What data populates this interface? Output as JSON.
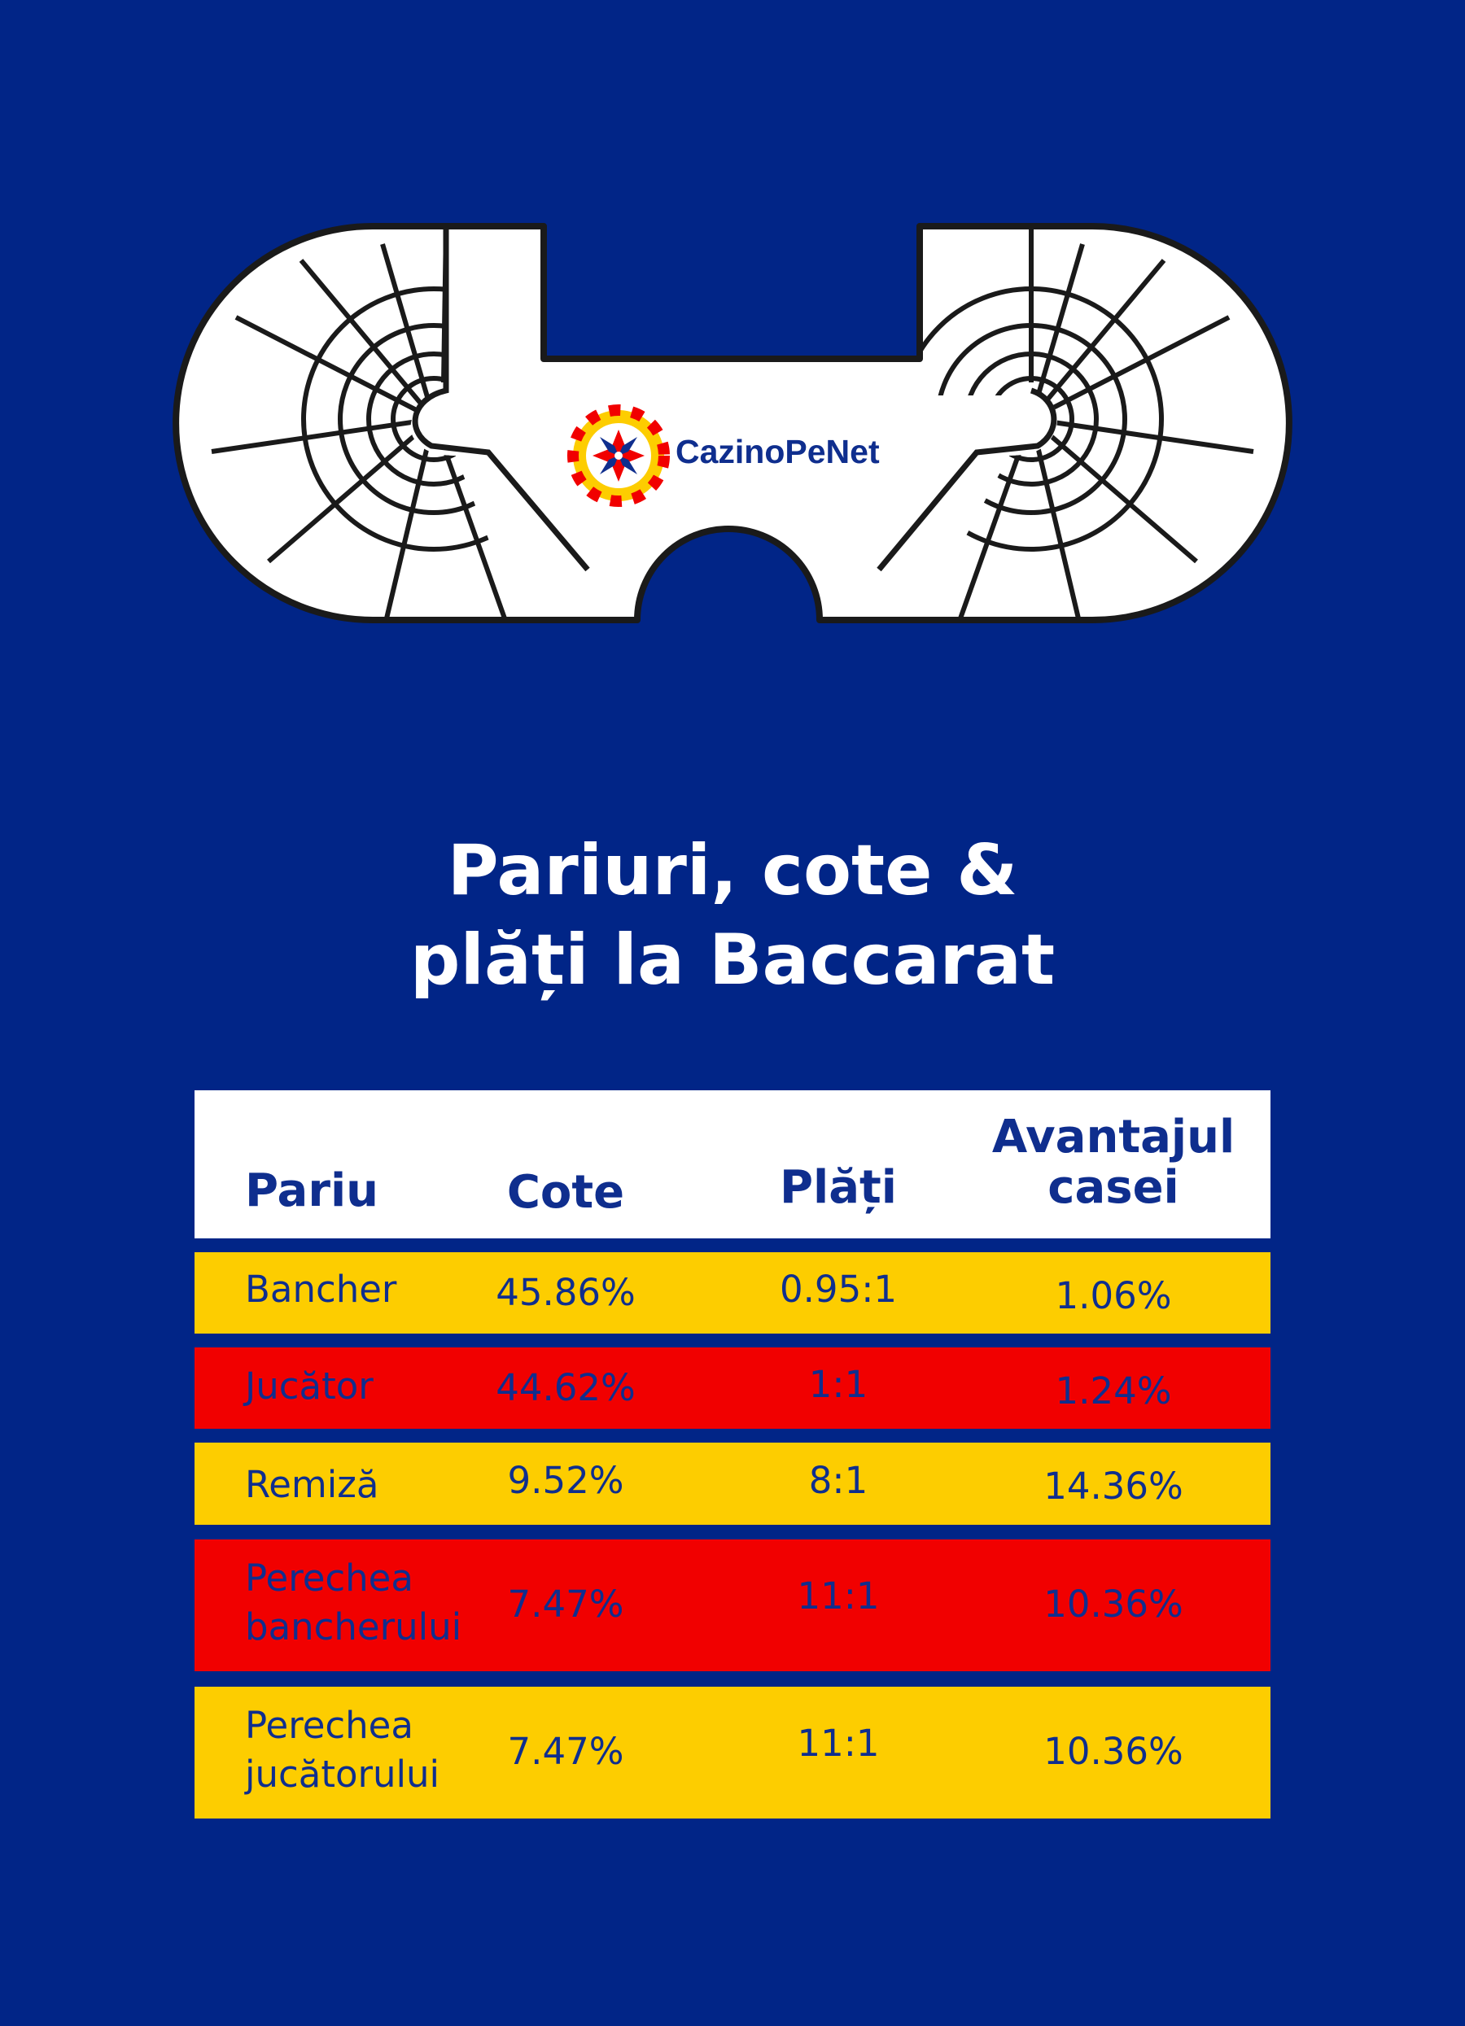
{
  "logo": {
    "brand_name": "CazinoPeNet"
  },
  "title": {
    "line1": "Pariuri, cote &",
    "line2": "plăți la Baccarat"
  },
  "table": {
    "headers": {
      "bet": "Pariu",
      "odds": "Cote",
      "payout": "Plăți",
      "house_edge_line1": "Avantajul",
      "house_edge_line2": "casei"
    },
    "rows": [
      {
        "bet_line1": "Bancher",
        "bet_line2": "",
        "odds": "45.86%",
        "payout": "0.95:1",
        "house_edge": "1.06%",
        "color": "#fdcd00"
      },
      {
        "bet_line1": "Jucător",
        "bet_line2": "",
        "odds": "44.62%",
        "payout": "1:1",
        "house_edge": "1.24%",
        "color": "#f10000"
      },
      {
        "bet_line1": "Remiză",
        "bet_line2": "",
        "odds": "9.52%",
        "payout": "8:1",
        "house_edge": "14.36%",
        "color": "#fdcd00"
      },
      {
        "bet_line1": "Perechea",
        "bet_line2": "bancherului",
        "odds": "7.47%",
        "payout": "11:1",
        "house_edge": "10.36%",
        "color": "#f10000"
      },
      {
        "bet_line1": "Perechea",
        "bet_line2": "jucătorului",
        "odds": "7.47%",
        "payout": "11:1",
        "house_edge": "10.36%",
        "color": "#fdcd00"
      }
    ]
  },
  "colors": {
    "background": "#012587",
    "text": "#0f2e8e",
    "yellow": "#fdcd00",
    "red": "#f10000"
  }
}
